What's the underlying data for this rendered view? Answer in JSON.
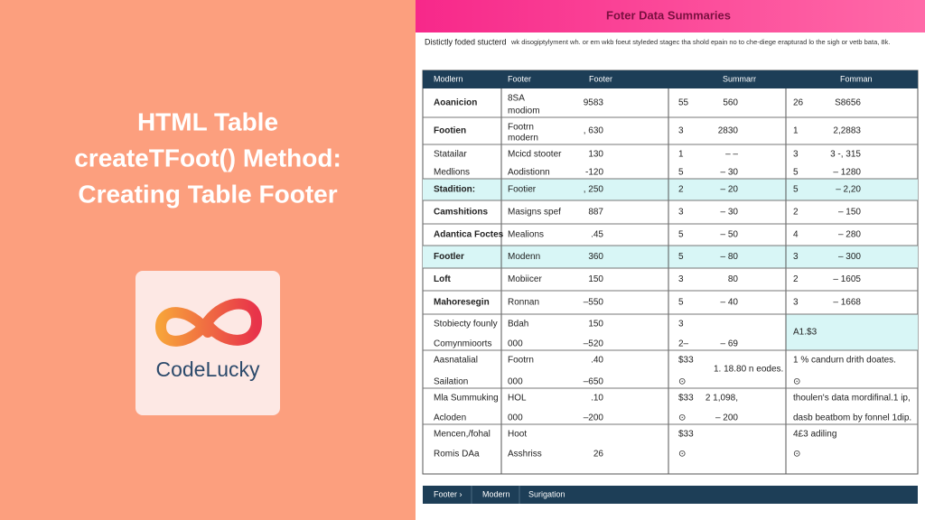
{
  "thumbnail": {
    "title_lines": [
      "HTML Table",
      "createTFoot() Method:",
      "Creating Table Footer"
    ],
    "logo_text": "CodeLucky"
  },
  "screenshot": {
    "title": "Foter Data Summaries",
    "subtitle": "Distictly foded stucterd",
    "description": "wk disogiptylyment wh. or em wkb foeut styleded stagec tha shold epain no to che-diege erapturad lo the sigh or vetb bata, 8k.",
    "table": {
      "headers": [
        "Modlern",
        "Footer",
        "Footer",
        "Summarr",
        "Fomman"
      ],
      "rows": [
        [
          "Aoanicion",
          [
            "8SA",
            "modiom"
          ],
          "9583",
          "55",
          "560",
          "26",
          "S8656"
        ],
        [
          "Footien",
          [
            "Footrn",
            "modern"
          ],
          ", 630",
          "3",
          "2830",
          "1",
          "2,2883"
        ],
        [
          [
            "Statailar",
            "Medlions"
          ],
          [
            "Mcicd stooter",
            "Aodistionn"
          ],
          [
            "130",
            "-120"
          ],
          [
            "1",
            "5"
          ],
          [
            "– –",
            "– 30"
          ],
          [
            "3",
            "5"
          ],
          [
            "3 -, 315",
            "– 1280"
          ]
        ],
        [
          "Stadition:",
          "Footier",
          ", 250",
          "2",
          "– 20",
          "5",
          "– 2,20"
        ],
        [
          "Camshitions",
          "Masigns spef",
          "887",
          "3",
          "– 30",
          "2",
          "– 150"
        ],
        [
          "Adantica Foctes",
          "Mealions",
          ".45",
          "5",
          "– 50",
          "4",
          "– 280"
        ],
        [
          "Footler",
          "Modenn",
          "360",
          "5",
          "– 80",
          "3",
          "– 300"
        ],
        [
          "Loft",
          "Mobiicer",
          "150",
          "3",
          "80",
          "2",
          "– 1605"
        ],
        [
          "Mahoresegin",
          "Ronnan",
          "–550",
          "5",
          "– 40",
          "3",
          "– 1668"
        ],
        [
          [
            "Stobiecty founly",
            "Comynmioorts"
          ],
          [
            "Bdah",
            "000"
          ],
          [
            "150",
            "–520"
          ],
          [
            "3",
            "2–"
          ],
          [
            null,
            "– 69"
          ],
          "A1.$3",
          null
        ],
        [
          [
            "Aasnatalial",
            "Sailation"
          ],
          [
            "Footrn",
            "000"
          ],
          [
            ".40",
            "–650"
          ],
          [
            "$33",
            "⊙"
          ],
          "1. 18.80 n eodes.",
          [
            "1 %  candurn drith doates.",
            "⊙"
          ],
          null
        ],
        [
          [
            "Mla Summuking",
            "Acloden"
          ],
          [
            "HOL",
            "000"
          ],
          [
            ".10",
            "–200"
          ],
          [
            "$33",
            "⊙"
          ],
          [
            "2 1,098,",
            "– 200"
          ],
          [
            "thoulen's data mordifinal.1 ip,",
            "dasb beatbom by fonnel 1dip."
          ],
          null
        ],
        [
          [
            "Mencen,/fohal",
            "Romis DAa"
          ],
          [
            "Hoot",
            "Asshriss"
          ],
          [
            null,
            "26"
          ],
          [
            "$33",
            "⊙"
          ],
          null,
          [
            "4£3 adiling",
            "⊙"
          ],
          null
        ]
      ]
    },
    "footer_nav": [
      "Footer ›",
      "Modern",
      "Surigation"
    ]
  }
}
